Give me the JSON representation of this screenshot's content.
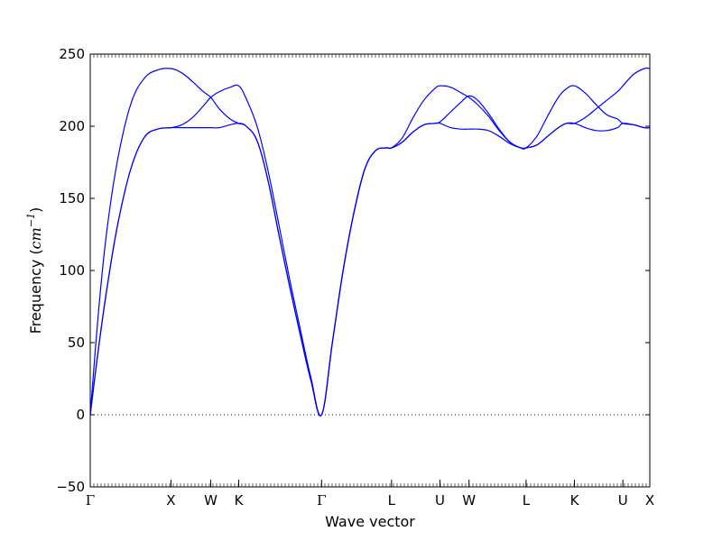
{
  "chart_data": {
    "type": "line",
    "title": "",
    "xlabel": "Wave vector",
    "ylabel_text": "Frequency (",
    "ylabel_unit_base": "cm",
    "ylabel_unit_exp": "−1",
    "ylabel_close": ")",
    "ylim": [
      -50,
      250
    ],
    "yticks": [
      -50,
      0,
      50,
      100,
      150,
      200,
      250
    ],
    "ytick_labels": [
      "−50",
      "0",
      "50",
      "100",
      "150",
      "200",
      "250"
    ],
    "xlim": [
      0,
      10.4
    ],
    "high_symmetry_points": [
      {
        "label": "Γ",
        "x": 0
      },
      {
        "label": "X",
        "x": 1.5
      },
      {
        "label": "W",
        "x": 2.24
      },
      {
        "label": "K",
        "x": 2.76
      },
      {
        "label": "Γ",
        "x": 4.3
      },
      {
        "label": "L",
        "x": 5.6
      },
      {
        "label": "U",
        "x": 6.5
      },
      {
        "label": "W",
        "x": 7.04
      },
      {
        "label": "L",
        "x": 8.1
      },
      {
        "label": "K",
        "x": 9.0
      },
      {
        "label": "U",
        "x": 9.9
      },
      {
        "label": "X",
        "x": 10.4
      }
    ],
    "zero_line": {
      "y": 0,
      "style": "dotted"
    },
    "grid": false,
    "line_color": "#0000ff",
    "series": [
      {
        "x": [
          0,
          0.15,
          0.3,
          0.5,
          0.75,
          1.0,
          1.25,
          1.5,
          1.7,
          1.9,
          2.1,
          2.24,
          2.4,
          2.6,
          2.76,
          2.9,
          3.1,
          3.3,
          3.5,
          3.7,
          3.9,
          4.1,
          4.3,
          4.5,
          4.7,
          4.9,
          5.1,
          5.3,
          5.5,
          5.6,
          5.8,
          6.0,
          6.2,
          6.4,
          6.5,
          6.7,
          6.9,
          7.04,
          7.2,
          7.4,
          7.6,
          7.8,
          8.0,
          8.1,
          8.3,
          8.5,
          8.7,
          8.85,
          9.0,
          9.2,
          9.4,
          9.6,
          9.8,
          9.9,
          10.1,
          10.3,
          10.4
        ],
        "values": [
          0,
          45,
          85,
          130,
          170,
          192,
          198,
          199,
          199,
          199,
          199,
          199,
          199,
          201,
          202,
          200,
          190,
          163,
          126,
          90,
          56,
          24,
          0,
          50,
          100,
          140,
          170,
          183,
          185,
          185,
          189,
          196,
          201,
          202,
          202,
          199,
          198,
          198,
          198,
          197,
          193,
          188,
          185,
          185,
          187,
          193,
          199,
          202,
          202,
          199,
          197,
          197,
          199,
          202,
          201,
          199,
          199
        ]
      },
      {
        "x": [
          0,
          0.15,
          0.3,
          0.5,
          0.75,
          1.0,
          1.25,
          1.5,
          1.7,
          1.9,
          2.1,
          2.24,
          2.4,
          2.6,
          2.76,
          2.9,
          3.1,
          3.3,
          3.5,
          3.7,
          3.9,
          4.1,
          4.3,
          4.5,
          4.7,
          4.9,
          5.1,
          5.3,
          5.5,
          5.6,
          5.8,
          6.0,
          6.2,
          6.4,
          6.5,
          6.7,
          6.9,
          7.04,
          7.2,
          7.4,
          7.6,
          7.8,
          8.0,
          8.1,
          8.3,
          8.5,
          8.7,
          8.85,
          9.0,
          9.2,
          9.4,
          9.6,
          9.8,
          9.9,
          10.1,
          10.3,
          10.4
        ],
        "values": [
          0,
          45,
          85,
          130,
          170,
          192,
          198,
          199,
          201,
          206,
          214,
          220,
          224,
          227,
          228,
          219,
          200,
          170,
          133,
          95,
          60,
          26,
          0,
          50,
          100,
          140,
          170,
          183,
          185,
          185,
          192,
          206,
          218,
          226,
          228,
          227,
          223,
          220,
          215,
          207,
          197,
          189,
          185,
          185,
          193,
          207,
          220,
          226,
          228,
          223,
          215,
          208,
          205,
          202,
          201,
          199,
          199
        ]
      },
      {
        "x": [
          0,
          0.15,
          0.3,
          0.5,
          0.75,
          1.0,
          1.25,
          1.5,
          1.7,
          1.9,
          2.1,
          2.24,
          2.4,
          2.6,
          2.76,
          2.9,
          3.1,
          3.3,
          3.5,
          3.7,
          3.9,
          4.1,
          4.3,
          4.5,
          4.7,
          4.9,
          5.1,
          5.3,
          5.5,
          5.6,
          5.8,
          6.0,
          6.2,
          6.4,
          6.5,
          6.7,
          6.9,
          7.04,
          7.2,
          7.4,
          7.6,
          7.8,
          8.0,
          8.1,
          8.3,
          8.5,
          8.7,
          8.85,
          9.0,
          9.2,
          9.4,
          9.6,
          9.8,
          9.9,
          10.1,
          10.3,
          10.4
        ],
        "values": [
          0,
          70,
          125,
          175,
          215,
          233,
          239,
          240,
          237,
          231,
          224,
          220,
          212,
          205,
          202,
          200,
          190,
          163,
          126,
          90,
          56,
          24,
          0,
          50,
          100,
          140,
          170,
          183,
          185,
          185,
          189,
          196,
          201,
          202,
          203,
          210,
          217,
          221,
          218,
          209,
          198,
          189,
          185,
          185,
          187,
          193,
          199,
          202,
          202,
          206,
          212,
          218,
          224,
          228,
          236,
          240,
          240
        ]
      }
    ]
  }
}
